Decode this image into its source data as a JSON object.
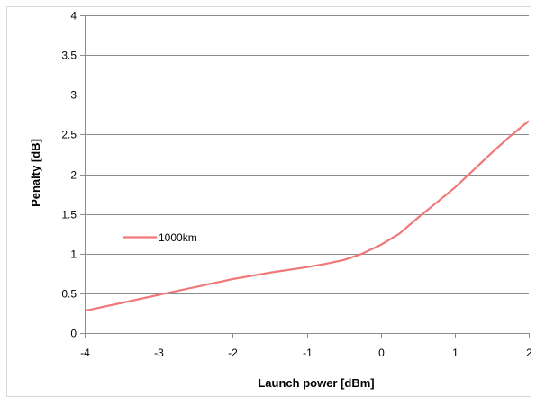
{
  "chart_data": {
    "type": "line",
    "title": "",
    "xlabel": "Launch power [dBm]",
    "ylabel": "Penalty [dB]",
    "xlim": [
      -4,
      2
    ],
    "ylim": [
      0,
      4
    ],
    "x_ticks": [
      -4,
      -3,
      -2,
      -1,
      0,
      1,
      2
    ],
    "y_ticks": [
      0,
      0.5,
      1,
      1.5,
      2,
      2.5,
      3,
      3.5,
      4
    ],
    "x_tick_labels": [
      "-4",
      "-3",
      "-2",
      "-1",
      "0",
      "1",
      "2"
    ],
    "y_tick_labels": [
      "0",
      "0.5",
      "1",
      "1.5",
      "2",
      "2.5",
      "3",
      "3.5",
      "4"
    ],
    "grid": "horizontal",
    "legend_position": "middle-left",
    "series": [
      {
        "name": "1000km",
        "color": "#f07878",
        "x": [
          -4,
          -3.5,
          -3,
          -2.5,
          -2,
          -1.5,
          -1,
          -0.75,
          -0.5,
          -0.25,
          0,
          0.25,
          0.5,
          0.75,
          1,
          1.25,
          1.5,
          1.75,
          2
        ],
        "y": [
          0.28,
          0.38,
          0.48,
          0.58,
          0.68,
          0.76,
          0.83,
          0.87,
          0.92,
          1.0,
          1.11,
          1.25,
          1.45,
          1.64,
          1.83,
          2.05,
          2.27,
          2.48,
          2.67
        ]
      }
    ]
  }
}
